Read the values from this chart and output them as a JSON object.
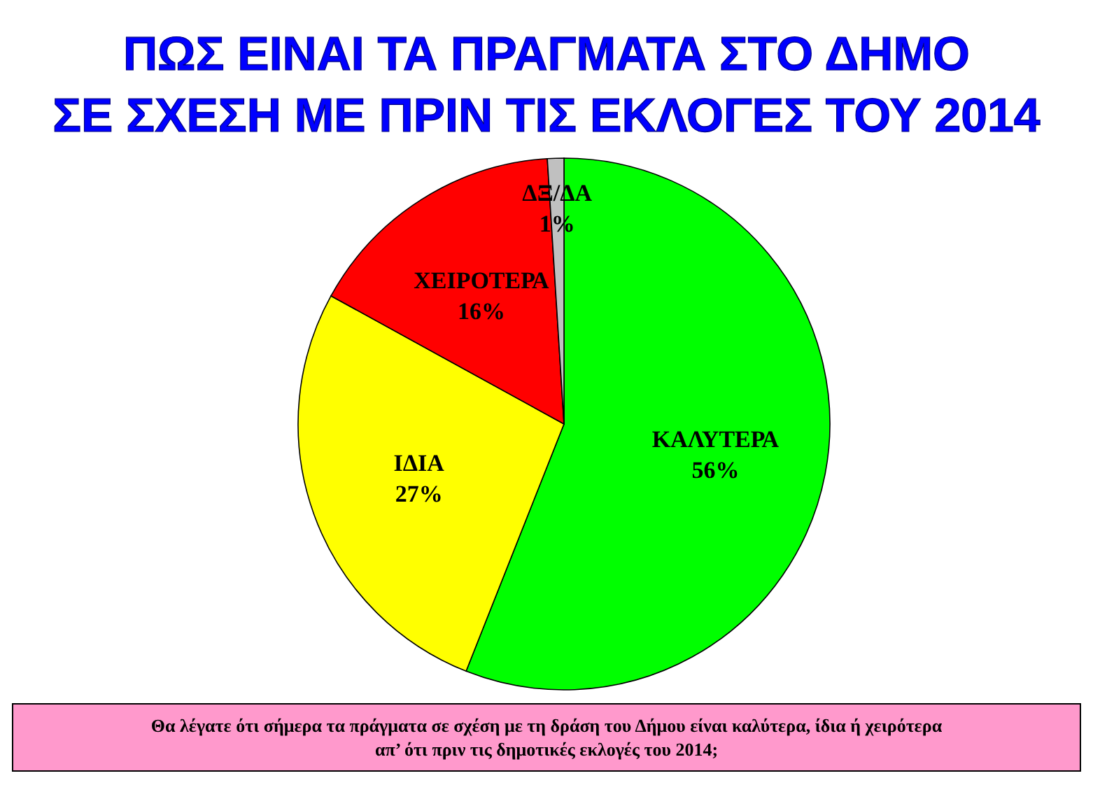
{
  "chart_data": {
    "type": "pie",
    "title": "ΠΩΣ ΕΙΝΑΙ ΤΑ ΠΡΑΓΜΑΤΑ ΣΤΟ ΔΗΜΟ\nΣΕ ΣΧΕΣΗ ΜΕ ΠΡΙΝ ΤΙΣ ΕΚΛΟΓΕΣ ΤΟΥ 2014",
    "categories": [
      "ΚΑΛΥΤΕΡΑ",
      "ΙΔΙΑ",
      "ΧΕΙΡΟΤΕΡΑ",
      "ΔΞ/ΔΑ"
    ],
    "values": [
      56,
      27,
      16,
      1
    ],
    "colors": [
      "#00ff00",
      "#ffff00",
      "#ff0000",
      "#c0c0c0"
    ],
    "value_labels": [
      "56%",
      "27%",
      "16%",
      "1%"
    ],
    "annotations": [
      "Θα λέγατε  ότι σήμερα τα πράγματα σε σχέση με τη δράση του Δήμου είναι καλύτερα,  ίδια ή χειρότερα απ’  ότι πριν τις δημοτικές εκλογές του 2014;"
    ],
    "legend": false
  }
}
